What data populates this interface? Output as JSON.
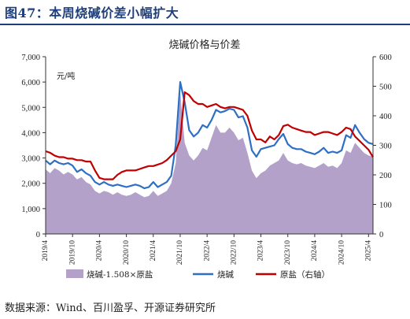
{
  "figure": {
    "title": "图47：本周烧碱价差小幅扩大",
    "source": "数据来源：Wind、百川盈孚、开源证券研究所"
  },
  "colors": {
    "title": "#1f3f7a",
    "spread_fill": "#b3a1c9",
    "caustic_soda": "#2e6fc4",
    "raw_salt": "#c00000"
  },
  "chart_data": {
    "type": "line",
    "title": "烧碱价格与价差",
    "left_axis_unit": "元/吨",
    "ylim_left": [
      0,
      7000
    ],
    "yticks_left": [
      "0",
      "1,000",
      "2,000",
      "3,000",
      "4,000",
      "5,000",
      "6,000",
      "7,000"
    ],
    "ylim_right": [
      0,
      600
    ],
    "yticks_right": [
      "0",
      "100",
      "200",
      "300",
      "400",
      "500",
      "600"
    ],
    "x_ticks": [
      "2019/4",
      "2019/10",
      "2020/4",
      "2020/10",
      "2021/4",
      "2021/10",
      "2022/4",
      "2022/10",
      "2023/4",
      "2023/10",
      "2024/4",
      "2024/10",
      "2025/4"
    ],
    "x_start": "2019/4",
    "x_end": "2025/5",
    "grid": false,
    "legend_position": "bottom",
    "series": [
      {
        "name": "烧碱-1.508×原盐",
        "axis": "left",
        "style": "area",
        "points": [
          [
            "2019/4",
            2550
          ],
          [
            "2019/5",
            2400
          ],
          [
            "2019/6",
            2600
          ],
          [
            "2019/7",
            2500
          ],
          [
            "2019/8",
            2350
          ],
          [
            "2019/9",
            2450
          ],
          [
            "2019/10",
            2350
          ],
          [
            "2019/11",
            2150
          ],
          [
            "2019/12",
            2250
          ],
          [
            "2020/1",
            2050
          ],
          [
            "2020/2",
            1950
          ],
          [
            "2020/3",
            1700
          ],
          [
            "2020/4",
            1600
          ],
          [
            "2020/5",
            1700
          ],
          [
            "2020/6",
            1650
          ],
          [
            "2020/7",
            1550
          ],
          [
            "2020/8",
            1650
          ],
          [
            "2020/9",
            1550
          ],
          [
            "2020/10",
            1500
          ],
          [
            "2020/11",
            1550
          ],
          [
            "2020/12",
            1650
          ],
          [
            "2021/1",
            1550
          ],
          [
            "2021/2",
            1450
          ],
          [
            "2021/3",
            1500
          ],
          [
            "2021/4",
            1700
          ],
          [
            "2021/5",
            1500
          ],
          [
            "2021/6",
            1600
          ],
          [
            "2021/7",
            1700
          ],
          [
            "2021/8",
            2000
          ],
          [
            "2021/9",
            2800
          ],
          [
            "2021/10",
            5600
          ],
          [
            "2021/11",
            3600
          ],
          [
            "2021/12",
            3100
          ],
          [
            "2022/1",
            2900
          ],
          [
            "2022/2",
            3100
          ],
          [
            "2022/3",
            3400
          ],
          [
            "2022/4",
            3300
          ],
          [
            "2022/5",
            3800
          ],
          [
            "2022/6",
            4300
          ],
          [
            "2022/7",
            4000
          ],
          [
            "2022/8",
            4000
          ],
          [
            "2022/9",
            4200
          ],
          [
            "2022/10",
            4000
          ],
          [
            "2022/11",
            3700
          ],
          [
            "2022/12",
            3800
          ],
          [
            "2023/1",
            3200
          ],
          [
            "2023/2",
            2500
          ],
          [
            "2023/3",
            2200
          ],
          [
            "2023/4",
            2400
          ],
          [
            "2023/5",
            2500
          ],
          [
            "2023/6",
            2700
          ],
          [
            "2023/7",
            2800
          ],
          [
            "2023/8",
            2900
          ],
          [
            "2023/9",
            3200
          ],
          [
            "2023/10",
            2900
          ],
          [
            "2023/11",
            2800
          ],
          [
            "2023/12",
            2750
          ],
          [
            "2024/1",
            2800
          ],
          [
            "2024/2",
            2700
          ],
          [
            "2024/3",
            2650
          ],
          [
            "2024/4",
            2600
          ],
          [
            "2024/5",
            2700
          ],
          [
            "2024/6",
            2800
          ],
          [
            "2024/7",
            2650
          ],
          [
            "2024/8",
            2700
          ],
          [
            "2024/9",
            2600
          ],
          [
            "2024/10",
            2800
          ],
          [
            "2024/11",
            3300
          ],
          [
            "2024/12",
            3200
          ],
          [
            "2025/1",
            3600
          ],
          [
            "2025/2",
            3400
          ],
          [
            "2025/3",
            3200
          ],
          [
            "2025/4",
            3100
          ],
          [
            "2025/5",
            3050
          ]
        ]
      },
      {
        "name": "烧碱",
        "axis": "left",
        "style": "line",
        "points": [
          [
            "2019/4",
            2900
          ],
          [
            "2019/5",
            2750
          ],
          [
            "2019/6",
            2900
          ],
          [
            "2019/7",
            2800
          ],
          [
            "2019/8",
            2750
          ],
          [
            "2019/9",
            2800
          ],
          [
            "2019/10",
            2700
          ],
          [
            "2019/11",
            2450
          ],
          [
            "2019/12",
            2550
          ],
          [
            "2020/1",
            2400
          ],
          [
            "2020/2",
            2300
          ],
          [
            "2020/3",
            2050
          ],
          [
            "2020/4",
            1950
          ],
          [
            "2020/5",
            2050
          ],
          [
            "2020/6",
            1950
          ],
          [
            "2020/7",
            1900
          ],
          [
            "2020/8",
            1950
          ],
          [
            "2020/9",
            1900
          ],
          [
            "2020/10",
            1850
          ],
          [
            "2020/11",
            1900
          ],
          [
            "2020/12",
            1950
          ],
          [
            "2021/1",
            1900
          ],
          [
            "2021/2",
            1800
          ],
          [
            "2021/3",
            1850
          ],
          [
            "2021/4",
            2050
          ],
          [
            "2021/5",
            1850
          ],
          [
            "2021/6",
            1950
          ],
          [
            "2021/7",
            2050
          ],
          [
            "2021/8",
            2300
          ],
          [
            "2021/9",
            3500
          ],
          [
            "2021/10",
            6000
          ],
          [
            "2021/11",
            5200
          ],
          [
            "2021/12",
            4100
          ],
          [
            "2022/1",
            3850
          ],
          [
            "2022/2",
            4000
          ],
          [
            "2022/3",
            4300
          ],
          [
            "2022/4",
            4200
          ],
          [
            "2022/5",
            4500
          ],
          [
            "2022/6",
            4900
          ],
          [
            "2022/7",
            4800
          ],
          [
            "2022/8",
            4850
          ],
          [
            "2022/9",
            4950
          ],
          [
            "2022/10",
            4900
          ],
          [
            "2022/11",
            4600
          ],
          [
            "2022/12",
            4650
          ],
          [
            "2023/1",
            4200
          ],
          [
            "2023/2",
            3300
          ],
          [
            "2023/3",
            3050
          ],
          [
            "2023/4",
            3350
          ],
          [
            "2023/5",
            3400
          ],
          [
            "2023/6",
            3450
          ],
          [
            "2023/7",
            3500
          ],
          [
            "2023/8",
            3750
          ],
          [
            "2023/9",
            3950
          ],
          [
            "2023/10",
            3550
          ],
          [
            "2023/11",
            3400
          ],
          [
            "2023/12",
            3350
          ],
          [
            "2024/1",
            3350
          ],
          [
            "2024/2",
            3250
          ],
          [
            "2024/3",
            3200
          ],
          [
            "2024/4",
            3150
          ],
          [
            "2024/5",
            3250
          ],
          [
            "2024/6",
            3400
          ],
          [
            "2024/7",
            3200
          ],
          [
            "2024/8",
            3250
          ],
          [
            "2024/9",
            3200
          ],
          [
            "2024/10",
            3300
          ],
          [
            "2024/11",
            3900
          ],
          [
            "2024/12",
            3800
          ],
          [
            "2025/1",
            4300
          ],
          [
            "2025/2",
            4000
          ],
          [
            "2025/3",
            3750
          ],
          [
            "2025/4",
            3600
          ],
          [
            "2025/5",
            3550
          ]
        ]
      },
      {
        "name": "原盐（右轴）",
        "axis": "right",
        "style": "line",
        "points": [
          [
            "2019/4",
            280
          ],
          [
            "2019/5",
            275
          ],
          [
            "2019/6",
            265
          ],
          [
            "2019/7",
            260
          ],
          [
            "2019/8",
            260
          ],
          [
            "2019/9",
            255
          ],
          [
            "2019/10",
            255
          ],
          [
            "2019/11",
            250
          ],
          [
            "2019/12",
            250
          ],
          [
            "2020/1",
            245
          ],
          [
            "2020/2",
            245
          ],
          [
            "2020/3",
            215
          ],
          [
            "2020/4",
            190
          ],
          [
            "2020/5",
            185
          ],
          [
            "2020/6",
            185
          ],
          [
            "2020/7",
            185
          ],
          [
            "2020/8",
            200
          ],
          [
            "2020/9",
            210
          ],
          [
            "2020/10",
            215
          ],
          [
            "2020/11",
            215
          ],
          [
            "2020/12",
            215
          ],
          [
            "2021/1",
            220
          ],
          [
            "2021/2",
            225
          ],
          [
            "2021/3",
            230
          ],
          [
            "2021/4",
            230
          ],
          [
            "2021/5",
            235
          ],
          [
            "2021/6",
            240
          ],
          [
            "2021/7",
            250
          ],
          [
            "2021/8",
            265
          ],
          [
            "2021/9",
            280
          ],
          [
            "2021/10",
            320
          ],
          [
            "2021/11",
            480
          ],
          [
            "2021/12",
            470
          ],
          [
            "2022/1",
            450
          ],
          [
            "2022/2",
            440
          ],
          [
            "2022/3",
            440
          ],
          [
            "2022/4",
            430
          ],
          [
            "2022/5",
            435
          ],
          [
            "2022/6",
            440
          ],
          [
            "2022/7",
            430
          ],
          [
            "2022/8",
            425
          ],
          [
            "2022/9",
            430
          ],
          [
            "2022/10",
            430
          ],
          [
            "2022/11",
            425
          ],
          [
            "2022/12",
            420
          ],
          [
            "2023/1",
            400
          ],
          [
            "2023/2",
            350
          ],
          [
            "2023/3",
            320
          ],
          [
            "2023/4",
            320
          ],
          [
            "2023/5",
            310
          ],
          [
            "2023/6",
            330
          ],
          [
            "2023/7",
            320
          ],
          [
            "2023/8",
            335
          ],
          [
            "2023/9",
            365
          ],
          [
            "2023/10",
            370
          ],
          [
            "2023/11",
            360
          ],
          [
            "2023/12",
            355
          ],
          [
            "2024/1",
            350
          ],
          [
            "2024/2",
            345
          ],
          [
            "2024/3",
            345
          ],
          [
            "2024/4",
            335
          ],
          [
            "2024/5",
            340
          ],
          [
            "2024/6",
            345
          ],
          [
            "2024/7",
            345
          ],
          [
            "2024/8",
            340
          ],
          [
            "2024/9",
            335
          ],
          [
            "2024/10",
            345
          ],
          [
            "2024/11",
            360
          ],
          [
            "2024/12",
            355
          ],
          [
            "2025/1",
            330
          ],
          [
            "2025/2",
            315
          ],
          [
            "2025/3",
            300
          ],
          [
            "2025/4",
            285
          ],
          [
            "2025/5",
            260
          ]
        ]
      }
    ]
  }
}
